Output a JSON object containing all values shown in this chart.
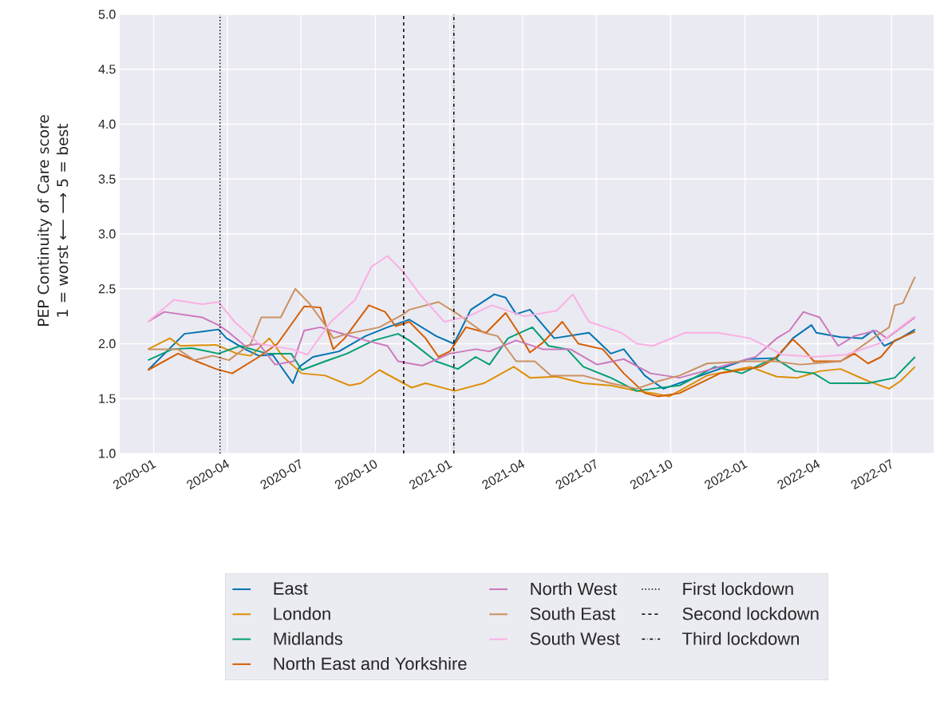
{
  "chart_data": {
    "type": "line",
    "ylabel": "PEP Continuity of Care score 1 = worst ⟵ ⟶ 5 = best",
    "xlim": [
      "2019-11-20",
      "2022-08-22"
    ],
    "ylim": [
      1.0,
      5.0
    ],
    "xticks": [
      "2020-01",
      "2020-04",
      "2020-07",
      "2020-10",
      "2021-01",
      "2021-04",
      "2021-07",
      "2021-10",
      "2022-01",
      "2022-04",
      "2022-07"
    ],
    "yticks": [
      {
        "value": 1.0,
        "label": "1.0"
      },
      {
        "value": 1.5,
        "label": "1.5"
      },
      {
        "value": 2.0,
        "label": "2.0"
      },
      {
        "value": 2.5,
        "label": "2.5"
      },
      {
        "value": 3.0,
        "label": "3.0"
      },
      {
        "value": 3.5,
        "label": "3.5"
      },
      {
        "value": 4.0,
        "label": "4.0"
      },
      {
        "value": 4.5,
        "label": "4.5"
      },
      {
        "value": 5.0,
        "label": "5.0"
      }
    ],
    "grid": true,
    "legend": "bottom",
    "series": [
      {
        "name": "East",
        "color": "#0173b2",
        "x": [
          "2019-12-25",
          "2020-02-08",
          "2020-03-21",
          "2020-03-31",
          "2020-04-23",
          "2020-05-10",
          "2020-05-27",
          "2020-06-21",
          "2020-06-29",
          "2020-07-16",
          "2020-08-17",
          "2020-09-19",
          "2020-10-16",
          "2020-11-12",
          "2020-12-15",
          "2021-01-06",
          "2021-01-27",
          "2021-02-25",
          "2021-03-11",
          "2021-03-24",
          "2021-04-10",
          "2021-05-10",
          "2021-06-22",
          "2021-07-19",
          "2021-08-04",
          "2021-08-30",
          "2021-09-16",
          "2021-09-22",
          "2021-11-15",
          "2022-01-04",
          "2022-02-09",
          "2022-03-01",
          "2022-03-24",
          "2022-03-30",
          "2022-04-29",
          "2022-05-26",
          "2022-06-08",
          "2022-06-22",
          "2022-07-12",
          "2022-07-30"
        ],
        "values": [
          1.76,
          2.09,
          2.13,
          2.05,
          1.95,
          1.89,
          1.9,
          1.64,
          1.79,
          1.88,
          1.93,
          2.07,
          2.15,
          2.22,
          2.07,
          2.0,
          2.31,
          2.45,
          2.42,
          2.27,
          2.31,
          2.05,
          2.1,
          1.91,
          1.95,
          1.71,
          1.62,
          1.59,
          1.73,
          1.86,
          1.87,
          2.05,
          2.17,
          2.1,
          2.06,
          2.05,
          2.12,
          1.98,
          2.05,
          2.13
        ]
      },
      {
        "name": "London",
        "color": "#de8f05",
        "x": [
          "2019-12-25",
          "2020-01-21",
          "2020-02-03",
          "2020-03-18",
          "2020-04-13",
          "2020-04-30",
          "2020-05-23",
          "2020-06-09",
          "2020-07-02",
          "2020-07-31",
          "2020-08-30",
          "2020-09-13",
          "2020-10-06",
          "2020-11-05",
          "2020-11-15",
          "2020-12-02",
          "2021-01-07",
          "2021-02-12",
          "2021-03-21",
          "2021-04-10",
          "2021-05-13",
          "2021-06-15",
          "2021-07-19",
          "2021-08-20",
          "2021-09-09",
          "2021-09-29",
          "2021-11-15",
          "2022-01-07",
          "2022-02-09",
          "2022-03-07",
          "2022-04-03",
          "2022-04-29",
          "2022-06-02",
          "2022-06-28",
          "2022-07-12",
          "2022-07-30"
        ],
        "values": [
          1.95,
          2.05,
          1.98,
          1.99,
          1.91,
          1.89,
          2.05,
          1.88,
          1.73,
          1.71,
          1.62,
          1.64,
          1.76,
          1.64,
          1.6,
          1.64,
          1.57,
          1.64,
          1.79,
          1.69,
          1.7,
          1.64,
          1.62,
          1.57,
          1.55,
          1.52,
          1.71,
          1.79,
          1.7,
          1.69,
          1.75,
          1.77,
          1.66,
          1.59,
          1.66,
          1.79
        ]
      },
      {
        "name": "Midlands",
        "color": "#029e73",
        "x": [
          "2019-12-25",
          "2020-01-24",
          "2020-02-17",
          "2020-03-21",
          "2020-04-17",
          "2020-05-20",
          "2020-06-19",
          "2020-07-02",
          "2020-07-31",
          "2020-08-27",
          "2020-09-29",
          "2020-10-29",
          "2020-11-12",
          "2020-12-15",
          "2021-01-11",
          "2021-02-02",
          "2021-02-19",
          "2021-03-14",
          "2021-04-13",
          "2021-05-03",
          "2021-05-26",
          "2021-06-15",
          "2021-07-19",
          "2021-08-20",
          "2021-09-09",
          "2021-10-12",
          "2021-11-25",
          "2021-12-28",
          "2022-02-06",
          "2022-03-04",
          "2022-03-27",
          "2022-04-16",
          "2022-06-02",
          "2022-07-05",
          "2022-07-30"
        ],
        "values": [
          1.85,
          1.95,
          1.96,
          1.91,
          1.98,
          1.91,
          1.91,
          1.76,
          1.84,
          1.91,
          2.03,
          2.09,
          2.03,
          1.84,
          1.77,
          1.88,
          1.81,
          2.05,
          2.15,
          1.98,
          1.95,
          1.79,
          1.69,
          1.57,
          1.59,
          1.62,
          1.79,
          1.73,
          1.87,
          1.75,
          1.73,
          1.64,
          1.64,
          1.69,
          1.88
        ]
      },
      {
        "name": "North East and Yorkshire",
        "color": "#d55e00",
        "x": [
          "2019-12-25",
          "2020-01-31",
          "2020-02-23",
          "2020-03-18",
          "2020-04-07",
          "2020-05-10",
          "2020-06-02",
          "2020-07-05",
          "2020-07-25",
          "2020-08-10",
          "2020-08-24",
          "2020-09-23",
          "2020-10-13",
          "2020-10-26",
          "2020-11-12",
          "2020-12-02",
          "2020-12-18",
          "2021-01-01",
          "2021-01-21",
          "2021-02-15",
          "2021-03-11",
          "2021-03-27",
          "2021-04-10",
          "2021-04-26",
          "2021-05-20",
          "2021-06-09",
          "2021-07-09",
          "2021-08-04",
          "2021-08-30",
          "2021-09-16",
          "2021-10-12",
          "2021-12-01",
          "2022-01-20",
          "2022-02-06",
          "2022-03-01",
          "2022-03-14",
          "2022-03-27",
          "2022-04-29",
          "2022-05-16",
          "2022-06-02",
          "2022-06-18",
          "2022-07-05",
          "2022-07-30"
        ],
        "values": [
          1.76,
          1.91,
          1.84,
          1.77,
          1.73,
          1.88,
          2.0,
          2.34,
          2.33,
          1.95,
          2.05,
          2.35,
          2.29,
          2.16,
          2.2,
          2.05,
          1.88,
          1.93,
          2.15,
          2.1,
          2.28,
          2.1,
          1.92,
          2.01,
          2.2,
          2.0,
          1.95,
          1.73,
          1.55,
          1.52,
          1.55,
          1.73,
          1.79,
          1.86,
          2.04,
          1.95,
          1.84,
          1.84,
          1.91,
          1.82,
          1.88,
          2.03,
          2.11
        ]
      },
      {
        "name": "North West",
        "color": "#cc78bc",
        "x": [
          "2019-12-25",
          "2020-01-14",
          "2020-03-01",
          "2020-03-21",
          "2020-03-31",
          "2020-04-23",
          "2020-05-10",
          "2020-05-30",
          "2020-06-22",
          "2020-07-05",
          "2020-07-25",
          "2020-08-17",
          "2020-09-19",
          "2020-10-16",
          "2020-10-29",
          "2020-11-28",
          "2021-01-01",
          "2021-02-02",
          "2021-02-19",
          "2021-03-24",
          "2021-04-26",
          "2021-05-30",
          "2021-07-02",
          "2021-08-04",
          "2021-09-06",
          "2021-10-12",
          "2021-12-01",
          "2022-01-14",
          "2022-02-09",
          "2022-02-25",
          "2022-03-14",
          "2022-04-03",
          "2022-04-26",
          "2022-05-16",
          "2022-06-12",
          "2022-06-25",
          "2022-07-30"
        ],
        "values": [
          2.2,
          2.29,
          2.24,
          2.17,
          2.12,
          1.98,
          2.0,
          1.81,
          1.84,
          2.12,
          2.15,
          2.1,
          2.03,
          1.98,
          1.84,
          1.8,
          1.91,
          1.95,
          1.93,
          2.03,
          1.95,
          1.95,
          1.81,
          1.86,
          1.73,
          1.69,
          1.79,
          1.88,
          2.05,
          2.12,
          2.29,
          2.24,
          1.98,
          2.07,
          2.12,
          2.05,
          2.24
        ]
      },
      {
        "name": "South East",
        "color": "#ca9161",
        "x": [
          "2019-12-25",
          "2020-01-31",
          "2020-02-20",
          "2020-03-14",
          "2020-04-03",
          "2020-04-30",
          "2020-05-13",
          "2020-06-06",
          "2020-06-24",
          "2020-07-11",
          "2020-07-31",
          "2020-08-10",
          "2020-08-27",
          "2020-10-06",
          "2020-11-05",
          "2020-11-12",
          "2020-12-18",
          "2021-01-11",
          "2021-02-12",
          "2021-03-01",
          "2021-03-24",
          "2021-04-16",
          "2021-05-06",
          "2021-06-15",
          "2021-07-19",
          "2021-08-20",
          "2021-09-16",
          "2021-10-12",
          "2021-11-15",
          "2022-01-04",
          "2022-02-06",
          "2022-03-10",
          "2022-04-29",
          "2022-06-08",
          "2022-06-28",
          "2022-07-05",
          "2022-07-15",
          "2022-07-30"
        ],
        "values": [
          1.95,
          1.95,
          1.85,
          1.89,
          1.85,
          2.0,
          2.24,
          2.24,
          2.5,
          2.37,
          2.17,
          2.05,
          2.09,
          2.15,
          2.27,
          2.31,
          2.38,
          2.27,
          2.1,
          2.07,
          1.84,
          1.84,
          1.71,
          1.71,
          1.64,
          1.59,
          1.66,
          1.71,
          1.82,
          1.84,
          1.84,
          1.81,
          1.84,
          2.05,
          2.15,
          2.35,
          2.37,
          2.61
        ]
      },
      {
        "name": "South West",
        "color": "#fbafe4",
        "x": [
          "2019-12-25",
          "2020-01-26",
          "2020-03-01",
          "2020-03-21",
          "2020-04-10",
          "2020-05-10",
          "2020-06-19",
          "2020-07-09",
          "2020-08-07",
          "2020-09-06",
          "2020-09-26",
          "2020-10-16",
          "2020-11-05",
          "2020-11-25",
          "2020-12-25",
          "2021-01-24",
          "2021-02-22",
          "2021-04-03",
          "2021-05-13",
          "2021-06-02",
          "2021-06-22",
          "2021-08-01",
          "2021-08-20",
          "2021-09-09",
          "2021-10-19",
          "2021-11-28",
          "2022-01-07",
          "2022-02-16",
          "2022-03-27",
          "2022-05-06",
          "2022-06-15",
          "2022-07-30"
        ],
        "values": [
          2.2,
          2.4,
          2.36,
          2.38,
          2.2,
          2.0,
          1.95,
          1.9,
          2.2,
          2.4,
          2.7,
          2.8,
          2.65,
          2.45,
          2.2,
          2.25,
          2.35,
          2.25,
          2.3,
          2.45,
          2.2,
          2.1,
          2.0,
          1.98,
          2.1,
          2.1,
          2.05,
          1.9,
          1.88,
          1.9,
          2.0,
          2.25
        ]
      }
    ],
    "ref_lines": [
      {
        "axis": "x",
        "value": "2020-03-23",
        "label": "First lockdown",
        "color": "#000000",
        "line_style": "dotted"
      },
      {
        "axis": "x",
        "value": "2020-11-05",
        "label": "Second lockdown",
        "color": "#000000",
        "line_style": "dashed"
      },
      {
        "axis": "x",
        "value": "2021-01-06",
        "label": "Third lockdown",
        "color": "#000000",
        "line_style": "dashdot"
      }
    ]
  }
}
